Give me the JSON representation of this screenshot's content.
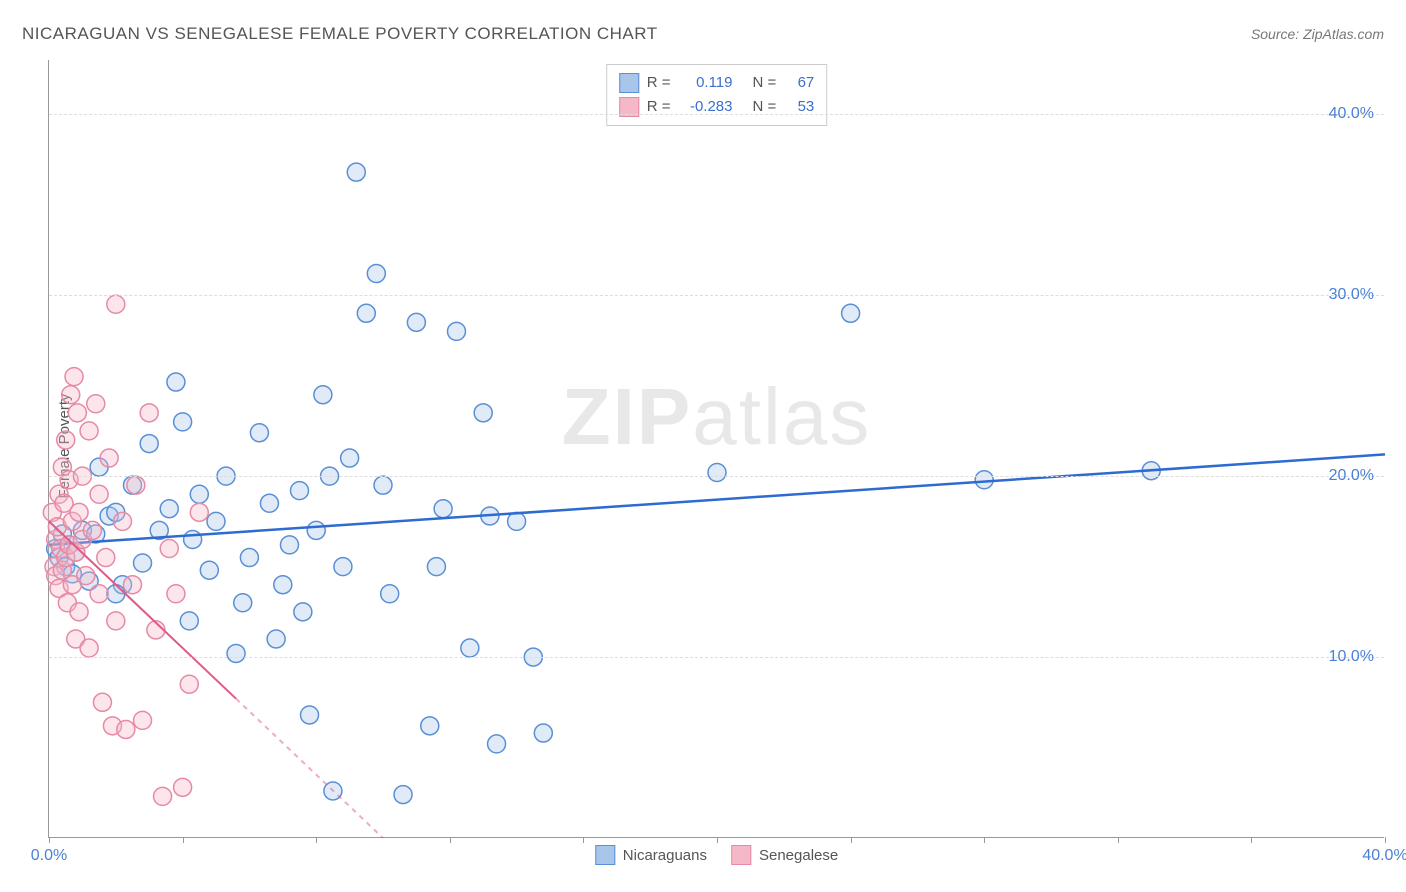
{
  "title": "NICARAGUAN VS SENEGALESE FEMALE POVERTY CORRELATION CHART",
  "source_label": "Source: ZipAtlas.com",
  "ylabel": "Female Poverty",
  "watermark_bold": "ZIP",
  "watermark_rest": "atlas",
  "chart": {
    "type": "scatter",
    "xlim": [
      0,
      40
    ],
    "ylim": [
      0,
      43
    ],
    "x_ticks": [
      0,
      4,
      8,
      12,
      16,
      20,
      24,
      28,
      32,
      36,
      40
    ],
    "x_tick_labels": {
      "0": "0.0%",
      "40": "40.0%"
    },
    "y_ticks": [
      10,
      20,
      30,
      40
    ],
    "y_tick_labels": {
      "10": "10.0%",
      "20": "20.0%",
      "30": "30.0%",
      "40": "40.0%"
    },
    "background_color": "#ffffff",
    "grid_color": "#dddddd",
    "axis_color": "#999999",
    "tick_label_color": "#4a80d6",
    "marker_radius": 9,
    "marker_stroke_width": 1.5,
    "marker_fill_opacity": 0.35,
    "series": [
      {
        "name": "Nicaraguans",
        "color_stroke": "#5a8fd6",
        "color_fill": "#a8c5ea",
        "trend": {
          "x1": 0,
          "y1": 16.2,
          "x2": 40,
          "y2": 21.2,
          "color": "#2e6bd0",
          "width": 2.5,
          "dash_from_x": null
        },
        "stats": {
          "R_label": "R =",
          "R": "0.119",
          "N_label": "N =",
          "N": "67"
        },
        "points": [
          [
            0.2,
            16.0
          ],
          [
            0.3,
            15.5
          ],
          [
            0.4,
            16.8
          ],
          [
            0.5,
            15.0
          ],
          [
            0.6,
            16.2
          ],
          [
            0.7,
            14.6
          ],
          [
            0.8,
            15.8
          ],
          [
            1.0,
            17.0
          ],
          [
            1.2,
            14.2
          ],
          [
            1.4,
            16.8
          ],
          [
            1.8,
            17.8
          ],
          [
            2.0,
            18.0
          ],
          [
            2.2,
            14.0
          ],
          [
            2.5,
            19.5
          ],
          [
            2.8,
            15.2
          ],
          [
            3.0,
            21.8
          ],
          [
            3.3,
            17.0
          ],
          [
            3.6,
            18.2
          ],
          [
            4.0,
            23.0
          ],
          [
            4.2,
            12.0
          ],
          [
            4.5,
            19.0
          ],
          [
            4.8,
            14.8
          ],
          [
            5.0,
            17.5
          ],
          [
            5.3,
            20.0
          ],
          [
            5.6,
            10.2
          ],
          [
            6.0,
            15.5
          ],
          [
            6.3,
            22.4
          ],
          [
            6.6,
            18.5
          ],
          [
            7.0,
            14.0
          ],
          [
            7.2,
            16.2
          ],
          [
            7.5,
            19.2
          ],
          [
            7.8,
            6.8
          ],
          [
            8.0,
            17.0
          ],
          [
            8.2,
            24.5
          ],
          [
            8.5,
            2.6
          ],
          [
            8.8,
            15.0
          ],
          [
            9.2,
            36.8
          ],
          [
            9.5,
            29.0
          ],
          [
            9.8,
            31.2
          ],
          [
            10.2,
            13.5
          ],
          [
            10.6,
            2.4
          ],
          [
            11.0,
            28.5
          ],
          [
            11.4,
            6.2
          ],
          [
            11.8,
            18.2
          ],
          [
            12.2,
            28.0
          ],
          [
            12.6,
            10.5
          ],
          [
            13.0,
            23.5
          ],
          [
            13.4,
            5.2
          ],
          [
            14.0,
            17.5
          ],
          [
            14.5,
            10.0
          ],
          [
            20.0,
            20.2
          ],
          [
            24.0,
            29.0
          ],
          [
            28.0,
            19.8
          ],
          [
            33.0,
            20.3
          ],
          [
            3.8,
            25.2
          ],
          [
            5.8,
            13.0
          ],
          [
            6.8,
            11.0
          ],
          [
            9.0,
            21.0
          ],
          [
            10.0,
            19.5
          ],
          [
            2.0,
            13.5
          ],
          [
            1.5,
            20.5
          ],
          [
            4.3,
            16.5
          ],
          [
            7.6,
            12.5
          ],
          [
            8.4,
            20.0
          ],
          [
            11.6,
            15.0
          ],
          [
            13.2,
            17.8
          ],
          [
            14.8,
            5.8
          ]
        ]
      },
      {
        "name": "Senegalese",
        "color_stroke": "#e68aa5",
        "color_fill": "#f5b8c8",
        "trend": {
          "x1": 0,
          "y1": 17.5,
          "x2": 10,
          "y2": 0,
          "color": "#e05a85",
          "width": 2,
          "dash_from_x": 5.6
        },
        "stats": {
          "R_label": "R =",
          "R": "-0.283",
          "N_label": "N =",
          "N": "53"
        },
        "points": [
          [
            0.1,
            18.0
          ],
          [
            0.15,
            15.0
          ],
          [
            0.2,
            16.5
          ],
          [
            0.2,
            14.5
          ],
          [
            0.25,
            17.2
          ],
          [
            0.3,
            19.0
          ],
          [
            0.3,
            13.8
          ],
          [
            0.35,
            16.0
          ],
          [
            0.4,
            20.5
          ],
          [
            0.4,
            14.8
          ],
          [
            0.45,
            18.5
          ],
          [
            0.5,
            22.0
          ],
          [
            0.5,
            15.5
          ],
          [
            0.55,
            13.0
          ],
          [
            0.6,
            19.8
          ],
          [
            0.6,
            16.2
          ],
          [
            0.65,
            24.5
          ],
          [
            0.7,
            14.0
          ],
          [
            0.7,
            17.5
          ],
          [
            0.75,
            25.5
          ],
          [
            0.8,
            15.8
          ],
          [
            0.8,
            11.0
          ],
          [
            0.85,
            23.5
          ],
          [
            0.9,
            18.0
          ],
          [
            0.9,
            12.5
          ],
          [
            1.0,
            16.5
          ],
          [
            1.0,
            20.0
          ],
          [
            1.1,
            14.5
          ],
          [
            1.2,
            22.5
          ],
          [
            1.2,
            10.5
          ],
          [
            1.3,
            17.0
          ],
          [
            1.4,
            24.0
          ],
          [
            1.5,
            13.5
          ],
          [
            1.5,
            19.0
          ],
          [
            1.6,
            7.5
          ],
          [
            1.7,
            15.5
          ],
          [
            1.8,
            21.0
          ],
          [
            1.9,
            6.2
          ],
          [
            2.0,
            29.5
          ],
          [
            2.0,
            12.0
          ],
          [
            2.2,
            17.5
          ],
          [
            2.3,
            6.0
          ],
          [
            2.5,
            14.0
          ],
          [
            2.6,
            19.5
          ],
          [
            2.8,
            6.5
          ],
          [
            3.0,
            23.5
          ],
          [
            3.2,
            11.5
          ],
          [
            3.4,
            2.3
          ],
          [
            3.6,
            16.0
          ],
          [
            3.8,
            13.5
          ],
          [
            4.0,
            2.8
          ],
          [
            4.2,
            8.5
          ],
          [
            4.5,
            18.0
          ]
        ]
      }
    ]
  },
  "legend_bottom": [
    {
      "label": "Nicaraguans",
      "fill": "#a8c5ea",
      "stroke": "#5a8fd6"
    },
    {
      "label": "Senegalese",
      "fill": "#f5b8c8",
      "stroke": "#e68aa5"
    }
  ]
}
